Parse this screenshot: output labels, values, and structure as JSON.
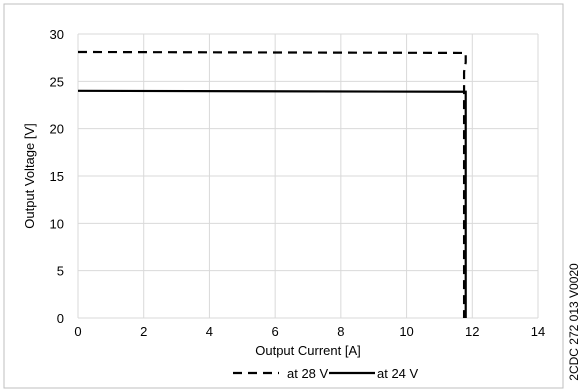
{
  "chart_data": {
    "type": "line",
    "title": "",
    "xlabel": "Output Current [A]",
    "ylabel": "Output Voltage [V]",
    "xlim": [
      0,
      14
    ],
    "ylim": [
      0,
      30
    ],
    "xticks": [
      0,
      2,
      4,
      6,
      8,
      10,
      12,
      14
    ],
    "yticks": [
      0,
      5,
      10,
      15,
      20,
      25,
      30
    ],
    "grid": true,
    "legend_position": "bottom",
    "series": [
      {
        "name": "at 28 V",
        "style": "dashed",
        "color": "#000000",
        "x": [
          0,
          11.8,
          11.8,
          11.75,
          11.75
        ],
        "y": [
          28.1,
          28.0,
          27.0,
          26.0,
          0
        ]
      },
      {
        "name": "at 24 V",
        "style": "solid",
        "color": "#000000",
        "x": [
          0,
          11.8,
          11.8
        ],
        "y": [
          24.0,
          23.9,
          0
        ]
      }
    ]
  },
  "side_code": "2CDC 272 013 V0020",
  "colors": {
    "grid": "#d9d9d9",
    "frame": "#bfbfbf",
    "line": "#000000"
  }
}
